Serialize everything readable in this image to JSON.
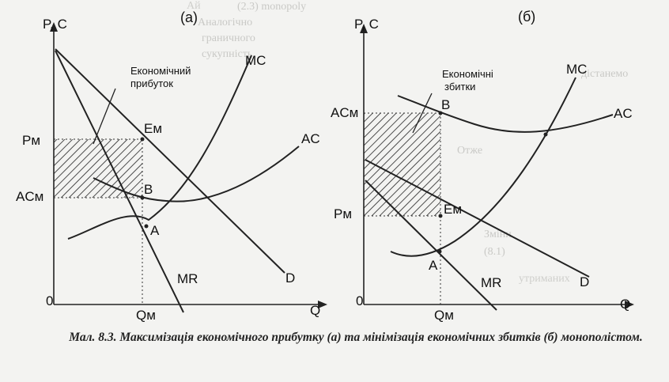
{
  "caption": {
    "figure_no": "Мал. 8.3.",
    "text": "Максимізація економічного прибутку (а) та мінімізація економічних збитків (б) монополістом."
  },
  "background_text": [
    "Ай",
    "(2.3) monopoly",
    "Аналогічно",
    "граничного",
    "сукупність",
    "дістанемо",
    "Отже",
    "Зміни",
    "(8.1)",
    "утриманих"
  ],
  "panel_a": {
    "panel_label": "(а)",
    "y_axis_label": "P, C",
    "x_axis_label": "Q",
    "origin_label": "0",
    "annotation": [
      "Економічний",
      "прибуток"
    ],
    "labels": {
      "mc": "MC",
      "ac": "AC",
      "mr": "MR",
      "d": "D",
      "em": "Eм",
      "b": "B",
      "a": "A",
      "pm": "Pм",
      "acm": "ACм",
      "qm": "Qм"
    }
  },
  "panel_b": {
    "panel_label": "(б)",
    "y_axis_label": "P, C",
    "x_axis_label": "Q",
    "origin_label": "0",
    "annotation": [
      "Економічні",
      "збитки"
    ],
    "labels": {
      "mc": "MC",
      "ac": "AC",
      "mr": "MR",
      "d": "D",
      "em": "Eм",
      "b": "B",
      "a": "A",
      "pm": "Pм",
      "acm": "ACм",
      "qm": "Qм"
    }
  }
}
